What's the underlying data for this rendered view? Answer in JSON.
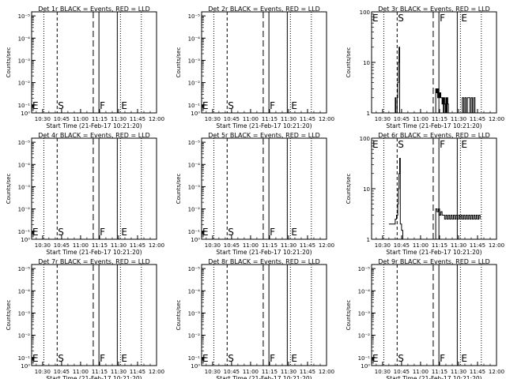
{
  "figure": {
    "x_title": "Start Time (21-Feb-17 10:21:20)",
    "y_title": "Counts/sec",
    "x_ticks": [
      "10:30",
      "10:45",
      "11:00",
      "11:15",
      "11:30",
      "11:45",
      "12:00"
    ],
    "marker_labels": [
      "E",
      "S",
      "F",
      "E"
    ]
  },
  "chart_data": [
    {
      "type": "line",
      "title": "Det 1r BLACK = Events, RED = LLD",
      "scale": "log",
      "y_ticks": [
        "10⁰",
        "10⁻¹",
        "10⁻²",
        "10⁻³",
        "10⁻⁴",
        "10⁻⁵"
      ],
      "series": []
    },
    {
      "type": "line",
      "title": "Det 2r BLACK = Events, RED = LLD",
      "scale": "log",
      "y_ticks": [
        "10⁰",
        "10⁻¹",
        "10⁻²",
        "10⁻³",
        "10⁻⁴",
        "10⁻⁵"
      ],
      "series": []
    },
    {
      "type": "line",
      "title": "Det 3r BLACK = Events, RED = LLD",
      "scale": "log",
      "y_ticks": [
        "1",
        "10",
        "100"
      ],
      "ylim": [
        1,
        100
      ],
      "series": [
        {
          "color": "#000000",
          "x": [
            "10:39:30",
            "10:40:00",
            "10:40:30",
            "10:41:00",
            "10:41:30",
            "10:42:00",
            "10:42:30",
            "10:43:00",
            "10:43:30",
            "10:44:00",
            "10:45:00",
            "10:46:00",
            "11:12:00",
            "11:12:30",
            "11:13:00",
            "11:13:30",
            "11:14:00",
            "11:14:30",
            "11:15:00",
            "11:15:30",
            "11:16:00",
            "11:16:30",
            "11:17:00",
            "11:17:30",
            "11:18:00",
            "11:18:30",
            "11:19:00",
            "11:19:30",
            "11:20:00",
            "11:20:30",
            "11:21:00",
            "11:21:30",
            "11:22:00",
            "11:23:00",
            "11:24:00",
            "11:25:00",
            "11:32:00",
            "11:33:00",
            "11:34:00",
            "11:35:00",
            "11:36:00",
            "11:37:00",
            "11:38:00",
            "11:39:00",
            "11:40:00",
            "11:41:00",
            "11:42:00",
            "11:43:00"
          ],
          "y": [
            1,
            2,
            1,
            1,
            2,
            4,
            10,
            20,
            1,
            1,
            1,
            1,
            3,
            2.5,
            3,
            2,
            3,
            2.5,
            2,
            2.5,
            2,
            2,
            1.5,
            2,
            1,
            2,
            1.5,
            1,
            2,
            1,
            2,
            1.5,
            1,
            1,
            1,
            1,
            1,
            2,
            1,
            2,
            1,
            2,
            2,
            1,
            2,
            1,
            2,
            1
          ]
        }
      ]
    },
    {
      "type": "line",
      "title": "Det 4r BLACK = Events, RED = LLD",
      "scale": "log",
      "y_ticks": [
        "10⁰",
        "10⁻¹",
        "10⁻²",
        "10⁻³",
        "10⁻⁴",
        "10⁻⁵"
      ],
      "series": []
    },
    {
      "type": "line",
      "title": "Det 5r BLACK = Events, RED = LLD",
      "scale": "log",
      "y_ticks": [
        "10⁰",
        "10⁻¹",
        "10⁻²",
        "10⁻³",
        "10⁻⁴",
        "10⁻⁵"
      ],
      "series": []
    },
    {
      "type": "line",
      "title": "Det 6r BLACK = Events, RED = LLD",
      "scale": "log",
      "y_ticks": [
        "1",
        "10",
        "100"
      ],
      "ylim": [
        1,
        100
      ],
      "series": [
        {
          "color": "#000000",
          "x": [
            "10:35:00",
            "10:36:00",
            "10:37:00",
            "10:38:00",
            "10:39:00",
            "10:40:00",
            "10:41:00",
            "10:42:00",
            "10:42:30",
            "10:43:00",
            "10:43:30",
            "10:44:00",
            "10:44:30",
            "10:45:00",
            "10:46:00",
            "11:12:00",
            "11:13:00",
            "11:14:00",
            "11:15:00",
            "11:16:00",
            "11:17:00",
            "11:18:00",
            "11:19:00",
            "11:20:00",
            "11:21:00",
            "11:22:00",
            "11:23:00",
            "11:24:00",
            "11:25:00",
            "11:26:00",
            "11:27:00",
            "11:28:00",
            "11:29:00",
            "11:30:00",
            "11:31:00",
            "11:32:00",
            "11:33:00",
            "11:34:00",
            "11:35:00",
            "11:36:00",
            "11:37:00",
            "11:38:00",
            "11:39:00",
            "11:40:00",
            "11:41:00",
            "11:42:00",
            "11:43:00",
            "11:44:00",
            "11:45:00",
            "11:46:00",
            "11:47:00"
          ],
          "y": [
            2,
            2,
            2,
            2,
            2,
            2.5,
            3,
            5,
            10,
            20,
            40,
            2,
            2,
            1.5,
            1,
            4,
            3.5,
            4,
            3,
            3.5,
            3,
            3,
            2.5,
            3,
            2.5,
            3,
            2.5,
            3,
            2.5,
            3,
            2.5,
            3,
            2.5,
            3,
            2.5,
            3,
            2.5,
            3,
            2.5,
            3,
            2.5,
            3,
            2.5,
            3,
            2.5,
            3,
            2.5,
            3,
            2.5,
            3,
            2.5
          ]
        }
      ]
    },
    {
      "type": "line",
      "title": "Det 7r BLACK = Events, RED = LLD",
      "scale": "log",
      "y_ticks": [
        "10⁰",
        "10⁻¹",
        "10⁻²",
        "10⁻³",
        "10⁻⁴",
        "10⁻⁵"
      ],
      "series": []
    },
    {
      "type": "line",
      "title": "Det 8r BLACK = Events, RED = LLD",
      "scale": "log",
      "y_ticks": [
        "10⁰",
        "10⁻¹",
        "10⁻²",
        "10⁻³",
        "10⁻⁴",
        "10⁻⁵"
      ],
      "series": []
    },
    {
      "type": "line",
      "title": "Det 9r BLACK = Events, RED = LLD",
      "scale": "log",
      "y_ticks": [
        "10⁰",
        "10⁻¹",
        "10⁻²",
        "10⁻³",
        "10⁻⁴",
        "10⁻⁵"
      ],
      "series": []
    }
  ]
}
